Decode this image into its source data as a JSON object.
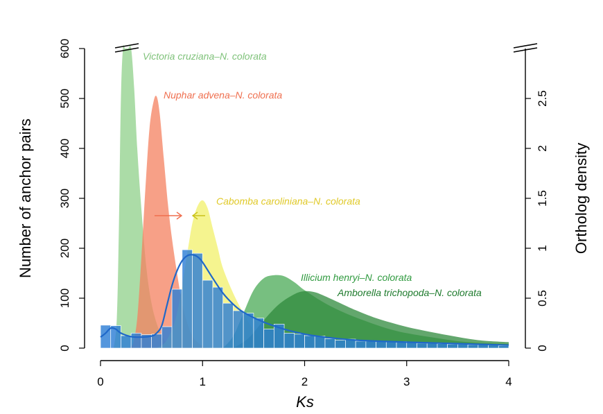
{
  "chart_data": {
    "type": "bar",
    "xlabel": "Ks",
    "ylabel_left": "Number of anchor pairs",
    "ylabel_right": "Ortholog density",
    "xlim": [
      0,
      4
    ],
    "ylim_left": [
      0,
      600
    ],
    "ylim_right": [
      0,
      3.0
    ],
    "x_ticks": [
      "0",
      "1",
      "2",
      "3",
      "4"
    ],
    "y_left_ticks": [
      "0",
      "100",
      "200",
      "300",
      "400",
      "500",
      "600"
    ],
    "y_right_ticks": [
      "0",
      "0.5",
      "1",
      "1.5",
      "2",
      "2.5"
    ],
    "histogram": {
      "bin_width": 0.1,
      "counts": [
        46,
        45,
        25,
        30,
        27,
        28,
        43,
        118,
        197,
        190,
        136,
        122,
        90,
        75,
        70,
        60,
        38,
        48,
        30,
        28,
        25,
        24,
        19,
        16,
        18,
        14,
        14,
        14,
        13,
        13,
        12,
        10,
        10,
        9,
        8,
        8,
        7,
        7,
        6,
        5
      ],
      "color": "#2e7fd6"
    },
    "anchor_density_line": {
      "color": "#1f68c9",
      "x": [
        0,
        0.05,
        0.1,
        0.15,
        0.2,
        0.3,
        0.4,
        0.5,
        0.55,
        0.6,
        0.65,
        0.7,
        0.75,
        0.8,
        0.85,
        0.9,
        0.95,
        1.0,
        1.1,
        1.2,
        1.3,
        1.4,
        1.6,
        1.8,
        2.0,
        2.2,
        2.5,
        3.0,
        3.5,
        4.0
      ],
      "y": [
        22,
        30,
        40,
        38,
        30,
        23,
        22,
        24,
        30,
        45,
        85,
        125,
        155,
        175,
        185,
        187,
        183,
        172,
        140,
        110,
        88,
        72,
        52,
        38,
        28,
        22,
        16,
        12,
        9,
        6
      ]
    },
    "ortholog_peaks": [
      {
        "label": "Victoria cruziana–N. colorata",
        "color": "#8fd08a",
        "text_color": "#7fc27a",
        "x": [
          0.13,
          0.16,
          0.18,
          0.2,
          0.22,
          0.24,
          0.27,
          0.3,
          0.33,
          0.36,
          0.4,
          0.45,
          0.5,
          0.55,
          0.6,
          0.65,
          0.7
        ],
        "y": [
          0,
          0.3,
          1.2,
          2.5,
          3.2,
          3.4,
          3.4,
          3.2,
          2.6,
          2.0,
          1.4,
          0.8,
          0.45,
          0.25,
          0.12,
          0.05,
          0
        ]
      },
      {
        "label": "Nuphar advena–N. colorata",
        "color": "#f4805f",
        "text_color": "#ef6f4f",
        "x": [
          0.28,
          0.32,
          0.36,
          0.4,
          0.44,
          0.48,
          0.52,
          0.55,
          0.58,
          0.62,
          0.66,
          0.7,
          0.75,
          0.8,
          0.85,
          0.9,
          0.95,
          1.0,
          1.05
        ],
        "y": [
          0,
          0.05,
          0.3,
          0.9,
          1.6,
          2.2,
          2.47,
          2.52,
          2.35,
          1.9,
          1.45,
          1.1,
          0.75,
          0.45,
          0.25,
          0.12,
          0.06,
          0.02,
          0
        ]
      },
      {
        "label": "Cabomba caroliniana–N. colorata",
        "color": "#f2f06a",
        "text_color": "#e0c928",
        "x": [
          0.55,
          0.65,
          0.75,
          0.85,
          0.9,
          0.95,
          1.0,
          1.05,
          1.1,
          1.15,
          1.2,
          1.3,
          1.4,
          1.5,
          1.6,
          1.7,
          1.8
        ],
        "y": [
          0,
          0.08,
          0.35,
          0.95,
          1.25,
          1.42,
          1.48,
          1.4,
          1.2,
          1.0,
          0.8,
          0.55,
          0.35,
          0.18,
          0.08,
          0.03,
          0
        ]
      },
      {
        "label": "Illicium henryi–N. colorata",
        "color": "#4aaa55",
        "text_color": "#2f9a3f",
        "x": [
          1.2,
          1.3,
          1.4,
          1.5,
          1.6,
          1.7,
          1.8,
          1.9,
          2.0,
          2.2,
          2.4,
          2.6,
          2.8,
          3.0,
          3.3,
          3.6,
          4.0
        ],
        "y": [
          0,
          0.12,
          0.35,
          0.58,
          0.7,
          0.73,
          0.72,
          0.66,
          0.58,
          0.45,
          0.35,
          0.27,
          0.2,
          0.15,
          0.1,
          0.06,
          0.04
        ]
      },
      {
        "label": "Amborella trichopoda–N. colorata",
        "color": "#2f8a3c",
        "text_color": "#1d7a2c",
        "x": [
          1.3,
          1.45,
          1.6,
          1.75,
          1.9,
          2.0,
          2.1,
          2.2,
          2.35,
          2.5,
          2.7,
          2.9,
          3.1,
          3.4,
          3.7,
          4.0
        ],
        "y": [
          0,
          0.1,
          0.28,
          0.44,
          0.54,
          0.57,
          0.56,
          0.52,
          0.45,
          0.38,
          0.3,
          0.24,
          0.19,
          0.13,
          0.08,
          0.06
        ]
      }
    ],
    "arrows": [
      {
        "color": "#ef6f4f",
        "direction": "right"
      },
      {
        "color": "#c9c21a",
        "direction": "left"
      }
    ]
  }
}
